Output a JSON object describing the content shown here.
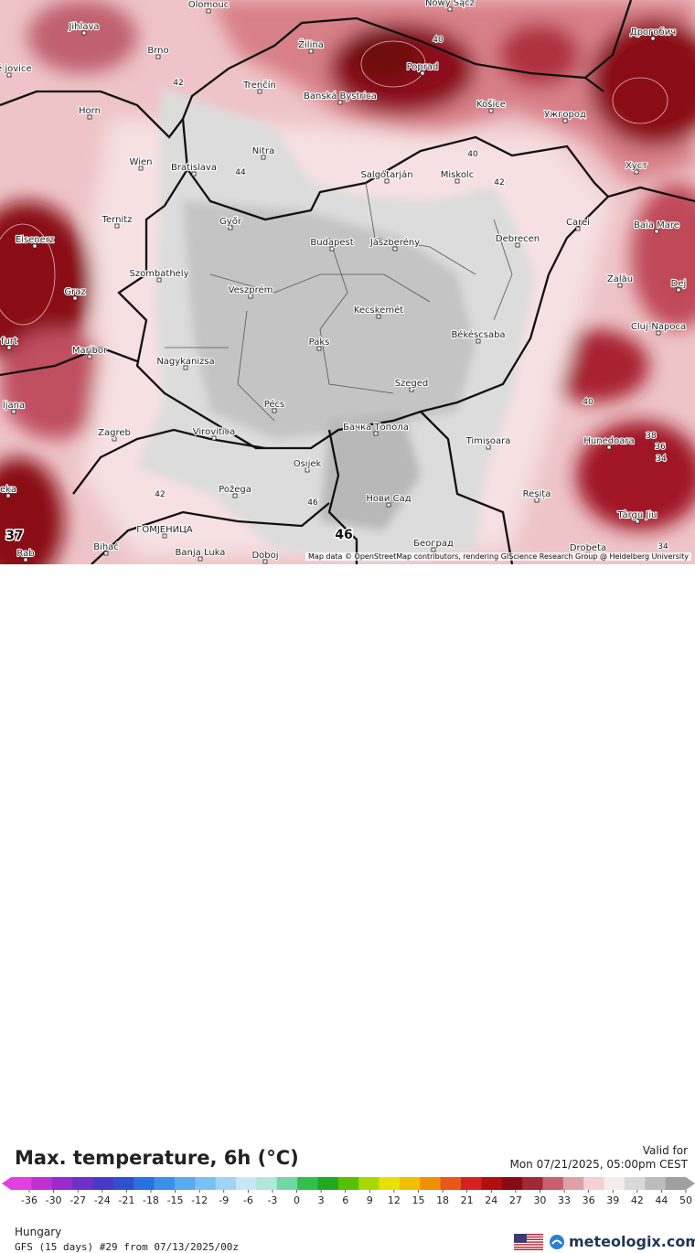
{
  "map": {
    "attribution": "Map data © OpenStreetMap contributors, rendering GIScience Research Group @ Heidelberg University",
    "cities": [
      {
        "name": "Olomouc"
      },
      {
        "name": "Jihlava"
      },
      {
        "name": "Brno"
      },
      {
        "name": "Žilina"
      },
      {
        "name": "Nowy Sącz"
      },
      {
        "name": "Poprad"
      },
      {
        "name": "Дрогобич"
      },
      {
        "name": "Trenčín"
      },
      {
        "name": "Banská Bystrica"
      },
      {
        "name": "Horn"
      },
      {
        "name": "Košice"
      },
      {
        "name": "Ужгород"
      },
      {
        "name": "Nitra"
      },
      {
        "name": "Wien"
      },
      {
        "name": "Bratislava"
      },
      {
        "name": "Salgótarján"
      },
      {
        "name": "Miskolc"
      },
      {
        "name": "Хуст"
      },
      {
        "name": "Ternitz"
      },
      {
        "name": "Győr"
      },
      {
        "name": "Carei"
      },
      {
        "name": "Baia Mare"
      },
      {
        "name": "Eisenerz"
      },
      {
        "name": "Budapest"
      },
      {
        "name": "Jászberény"
      },
      {
        "name": "Debrecen"
      },
      {
        "name": "Szombathely"
      },
      {
        "name": "Zalău"
      },
      {
        "name": "Graz"
      },
      {
        "name": "Veszprém"
      },
      {
        "name": "Dej"
      },
      {
        "name": "Kecskemét"
      },
      {
        "name": "Cluj-Napoca"
      },
      {
        "name": "Maribor"
      },
      {
        "name": "Paks"
      },
      {
        "name": "Békéscsaba"
      },
      {
        "name": "Nagykanizsa"
      },
      {
        "name": "Szeged"
      },
      {
        "name": "Pécs"
      },
      {
        "name": "Бачка Топола"
      },
      {
        "name": "Virovitica"
      },
      {
        "name": "Zagreb"
      },
      {
        "name": "Timișoara"
      },
      {
        "name": "Hunedoara"
      },
      {
        "name": "Osijek"
      },
      {
        "name": "Požega"
      },
      {
        "name": "Нови Сад"
      },
      {
        "name": "Reșița"
      },
      {
        "name": "ГОМЈЕНИЦА"
      },
      {
        "name": "Târgu Jiu"
      },
      {
        "name": "Bihać"
      },
      {
        "name": "Banja Luka"
      },
      {
        "name": "Doboj"
      },
      {
        "name": "Београд"
      },
      {
        "name": "Drobeta"
      },
      {
        "name": "Rab"
      },
      {
        "name": "ljana"
      },
      {
        "name": "furt"
      },
      {
        "name": "eka"
      },
      {
        "name": "ské jovice"
      }
    ],
    "isotherms": [
      {
        "value": "42"
      },
      {
        "value": "44"
      },
      {
        "value": "40"
      },
      {
        "value": "42"
      },
      {
        "value": "40"
      },
      {
        "value": "38"
      },
      {
        "value": "36"
      },
      {
        "value": "34"
      },
      {
        "value": "42"
      },
      {
        "value": "46"
      },
      {
        "value": "40"
      },
      {
        "value": "34"
      },
      {
        "value": "46"
      },
      {
        "value": "37"
      }
    ]
  },
  "footer": {
    "title": "Max. temperature, 6h (°C)",
    "valid_label": "Valid for",
    "valid_value": "Mon 07/21/2025, 05:00pm CEST",
    "region": "Hungary",
    "model": "GFS (15 days) #29 from  07/13/2025/00z",
    "brand": "meteologix.com"
  },
  "scale": {
    "ticks": [
      "-36",
      "-30",
      "-27",
      "-24",
      "-21",
      "-18",
      "-15",
      "-12",
      "-9",
      "-6",
      "-3",
      "0",
      "3",
      "6",
      "9",
      "12",
      "15",
      "18",
      "21",
      "24",
      "27",
      "30",
      "33",
      "36",
      "39",
      "42",
      "44",
      "50"
    ],
    "colors": [
      "#e040e0",
      "#c030d0",
      "#9a2ad0",
      "#7030c8",
      "#4a38c8",
      "#3050d0",
      "#2a70e0",
      "#3a90ea",
      "#5aaaf0",
      "#7ac0f4",
      "#a0d4f6",
      "#c8e6f4",
      "#b0e8d8",
      "#70d8a0",
      "#30c050",
      "#20a820",
      "#58c000",
      "#a8d800",
      "#e8e000",
      "#f0c000",
      "#f09000",
      "#e85818",
      "#d82020",
      "#b01010",
      "#8a0a14",
      "#a02838",
      "#c86070",
      "#e0a0a8",
      "#f2d0d4",
      "#f4ecec",
      "#d8d8d8",
      "#bcbcbc",
      "#a0a0a0"
    ]
  }
}
